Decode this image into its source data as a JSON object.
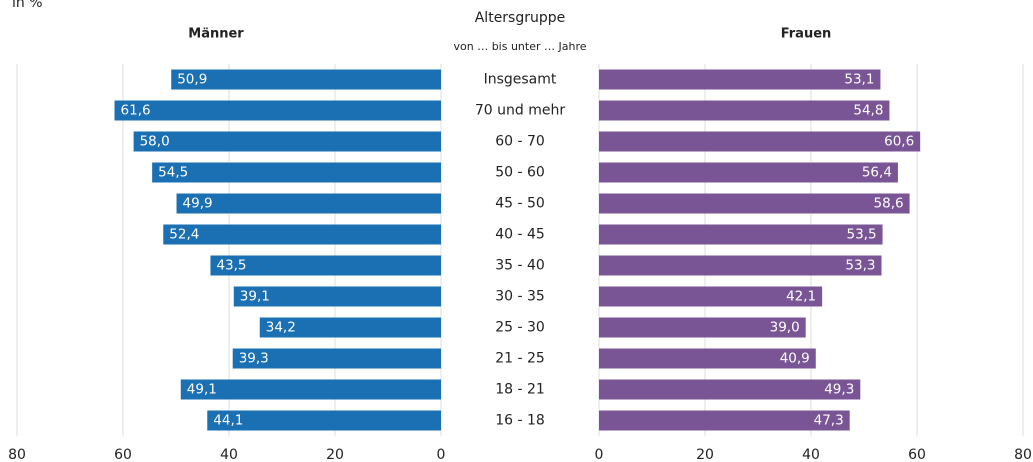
{
  "chart_data": {
    "type": "butterfly",
    "subtitle": "in %",
    "center_title": "Altersgruppe",
    "center_subtitle": "von … bis unter … Jahre",
    "categories": [
      "Insgesamt",
      "70 und mehr",
      "60 - 70",
      "50 - 60",
      "45 - 50",
      "40 - 45",
      "35 - 40",
      "30 - 35",
      "25 - 30",
      "21 - 25",
      "18 - 21",
      "16 - 18"
    ],
    "series": [
      {
        "name": "Männer",
        "color": "#1b6fb3",
        "values": [
          50.9,
          61.6,
          58.0,
          54.5,
          49.9,
          52.4,
          43.5,
          39.1,
          34.2,
          39.3,
          49.1,
          44.1
        ],
        "value_labels": [
          "50,9",
          "61,6",
          "58,0",
          "54,5",
          "49,9",
          "52,4",
          "43,5",
          "39,1",
          "34,2",
          "39,3",
          "49,1",
          "44,1"
        ]
      },
      {
        "name": "Frauen",
        "color": "#7a5596",
        "values": [
          53.1,
          54.8,
          60.6,
          56.4,
          58.6,
          53.5,
          53.3,
          42.1,
          39.0,
          40.9,
          49.3,
          47.3
        ],
        "value_labels": [
          "53,1",
          "54,8",
          "60,6",
          "56,4",
          "58,6",
          "53,5",
          "53,3",
          "42,1",
          "39,0",
          "40,9",
          "49,3",
          "47,3"
        ]
      }
    ],
    "xlim": [
      0,
      80
    ],
    "xticks": [
      0,
      20,
      40,
      60,
      80
    ],
    "grid": true
  }
}
